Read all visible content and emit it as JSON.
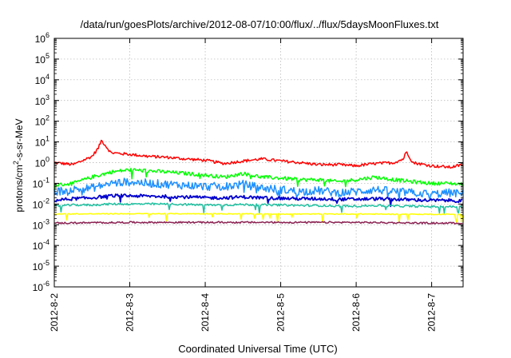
{
  "chart_data": {
    "type": "line",
    "title": "/data/run/goesPlots/archive/2012-08-07/10:00/flux/../flux/5daysMoonFluxes.txt",
    "xlabel": "Coordinated Universal Time (UTC)",
    "ylabel": {
      "base": "protons/cm",
      "sup": "2",
      "rest": "-s-sr-MeV"
    },
    "x_range": [
      "2012-08-02",
      "2012-08-07 10:00"
    ],
    "y_scale": "log",
    "ylim": [
      1e-06,
      1000000
    ],
    "y_ticks": [
      {
        "exp": "-6",
        "value": 1e-06
      },
      {
        "exp": "-5",
        "value": 1e-05
      },
      {
        "exp": "-4",
        "value": 0.0001
      },
      {
        "exp": "-3",
        "value": 0.001
      },
      {
        "exp": "-2",
        "value": 0.01
      },
      {
        "exp": "-1",
        "value": 0.1
      },
      {
        "exp": "0",
        "value": 1
      },
      {
        "exp": "1",
        "value": 10
      },
      {
        "exp": "2",
        "value": 100
      },
      {
        "exp": "3",
        "value": 1000
      },
      {
        "exp": "4",
        "value": 10000
      },
      {
        "exp": "5",
        "value": 100000
      },
      {
        "exp": "6",
        "value": 1000000
      }
    ],
    "y_tick_base": "10",
    "x_ticks": [
      "2012-8-2",
      "2012-8-3",
      "2012-8-4",
      "2012-8-5",
      "2012-8-6",
      "2012-8-7"
    ],
    "grid": true,
    "series": [
      {
        "color": "#ff0000",
        "x": [
          "2012-08-02 00:00",
          "2012-08-02 06:00",
          "2012-08-02 12:00",
          "2012-08-02 14:00",
          "2012-08-02 15:00",
          "2012-08-02 18:00",
          "2012-08-03 00:00",
          "2012-08-03 06:00",
          "2012-08-03 12:00",
          "2012-08-03 18:00",
          "2012-08-04 00:00",
          "2012-08-04 06:00",
          "2012-08-04 12:00",
          "2012-08-04 18:00",
          "2012-08-05 00:00",
          "2012-08-05 06:00",
          "2012-08-05 12:00",
          "2012-08-05 18:00",
          "2012-08-06 00:00",
          "2012-08-06 06:00",
          "2012-08-06 12:00",
          "2012-08-06 15:00",
          "2012-08-06 16:00",
          "2012-08-06 18:00",
          "2012-08-07 00:00",
          "2012-08-07 06:00",
          "2012-08-07 10:00"
        ],
        "y": [
          1.0,
          0.8,
          2.0,
          5.0,
          12.0,
          3.0,
          2.5,
          2.0,
          1.8,
          1.5,
          1.3,
          0.9,
          1.2,
          1.5,
          1.2,
          1.0,
          0.8,
          0.8,
          0.7,
          0.9,
          1.0,
          1.5,
          3.5,
          1.0,
          0.7,
          0.6,
          0.8
        ]
      },
      {
        "color": "#00ff00",
        "x": [
          "2012-08-02 00:00",
          "2012-08-02 06:00",
          "2012-08-02 12:00",
          "2012-08-02 18:00",
          "2012-08-03 00:00",
          "2012-08-03 06:00",
          "2012-08-03 12:00",
          "2012-08-03 18:00",
          "2012-08-04 00:00",
          "2012-08-04 06:00",
          "2012-08-04 12:00",
          "2012-08-04 18:00",
          "2012-08-05 00:00",
          "2012-08-05 06:00",
          "2012-08-05 12:00",
          "2012-08-05 18:00",
          "2012-08-06 00:00",
          "2012-08-06 06:00",
          "2012-08-06 12:00",
          "2012-08-06 18:00",
          "2012-08-07 00:00",
          "2012-08-07 06:00",
          "2012-08-07 10:00"
        ],
        "y": [
          0.08,
          0.1,
          0.2,
          0.35,
          0.45,
          0.4,
          0.35,
          0.3,
          0.25,
          0.2,
          0.3,
          0.2,
          0.18,
          0.15,
          0.15,
          0.12,
          0.15,
          0.2,
          0.15,
          0.12,
          0.1,
          0.1,
          0.09
        ]
      },
      {
        "color": "#1e90ff",
        "x": [
          "2012-08-02 00:00",
          "2012-08-02 06:00",
          "2012-08-02 12:00",
          "2012-08-02 18:00",
          "2012-08-03 00:00",
          "2012-08-03 06:00",
          "2012-08-03 12:00",
          "2012-08-03 18:00",
          "2012-08-04 00:00",
          "2012-08-04 06:00",
          "2012-08-04 12:00",
          "2012-08-04 18:00",
          "2012-08-05 00:00",
          "2012-08-05 06:00",
          "2012-08-05 12:00",
          "2012-08-05 18:00",
          "2012-08-06 00:00",
          "2012-08-06 06:00",
          "2012-08-06 12:00",
          "2012-08-06 18:00",
          "2012-08-07 00:00",
          "2012-08-07 06:00",
          "2012-08-07 10:00"
        ],
        "y": [
          0.04,
          0.05,
          0.06,
          0.1,
          0.12,
          0.1,
          0.09,
          0.08,
          0.07,
          0.07,
          0.09,
          0.06,
          0.05,
          0.04,
          0.045,
          0.035,
          0.04,
          0.05,
          0.04,
          0.035,
          0.03,
          0.035,
          0.03
        ]
      },
      {
        "color": "#0000cd",
        "x": [
          "2012-08-02 00:00",
          "2012-08-02 06:00",
          "2012-08-02 12:00",
          "2012-08-02 18:00",
          "2012-08-03 00:00",
          "2012-08-03 06:00",
          "2012-08-03 12:00",
          "2012-08-03 18:00",
          "2012-08-04 00:00",
          "2012-08-04 06:00",
          "2012-08-04 12:00",
          "2012-08-04 18:00",
          "2012-08-05 00:00",
          "2012-08-05 06:00",
          "2012-08-05 12:00",
          "2012-08-05 18:00",
          "2012-08-06 00:00",
          "2012-08-06 06:00",
          "2012-08-06 12:00",
          "2012-08-06 18:00",
          "2012-08-07 00:00",
          "2012-08-07 06:00",
          "2012-08-07 10:00"
        ],
        "y": [
          0.015,
          0.018,
          0.02,
          0.025,
          0.025,
          0.024,
          0.023,
          0.022,
          0.02,
          0.02,
          0.022,
          0.02,
          0.019,
          0.018,
          0.018,
          0.017,
          0.017,
          0.018,
          0.017,
          0.016,
          0.015,
          0.015,
          0.014
        ]
      },
      {
        "color": "#20c0a0",
        "x": [
          "2012-08-02 00:00",
          "2012-08-02 06:00",
          "2012-08-02 12:00",
          "2012-08-02 18:00",
          "2012-08-03 00:00",
          "2012-08-03 06:00",
          "2012-08-03 12:00",
          "2012-08-03 18:00",
          "2012-08-04 00:00",
          "2012-08-04 06:00",
          "2012-08-04 12:00",
          "2012-08-04 18:00",
          "2012-08-05 00:00",
          "2012-08-05 06:00",
          "2012-08-05 12:00",
          "2012-08-05 18:00",
          "2012-08-06 00:00",
          "2012-08-06 06:00",
          "2012-08-06 12:00",
          "2012-08-06 18:00",
          "2012-08-07 00:00",
          "2012-08-07 06:00",
          "2012-08-07 10:00"
        ],
        "y": [
          0.008,
          0.009,
          0.009,
          0.01,
          0.01,
          0.01,
          0.01,
          0.0095,
          0.009,
          0.009,
          0.0095,
          0.009,
          0.009,
          0.0085,
          0.0085,
          0.008,
          0.008,
          0.0085,
          0.008,
          0.0078,
          0.0075,
          0.0075,
          0.0072
        ]
      },
      {
        "color": "#ffff00",
        "x": [
          "2012-08-02 00:00",
          "2012-08-03 00:00",
          "2012-08-04 00:00",
          "2012-08-05 00:00",
          "2012-08-06 00:00",
          "2012-08-07 00:00",
          "2012-08-07 10:00"
        ],
        "y": [
          0.0033,
          0.0034,
          0.0034,
          0.0033,
          0.0033,
          0.0032,
          0.0032
        ]
      },
      {
        "color": "#8b2252",
        "x": [
          "2012-08-02 00:00",
          "2012-08-03 00:00",
          "2012-08-04 00:00",
          "2012-08-05 00:00",
          "2012-08-06 00:00",
          "2012-08-07 00:00",
          "2012-08-07 10:00"
        ],
        "y": [
          0.0012,
          0.0013,
          0.0013,
          0.0013,
          0.0013,
          0.0012,
          0.0012
        ]
      }
    ]
  }
}
